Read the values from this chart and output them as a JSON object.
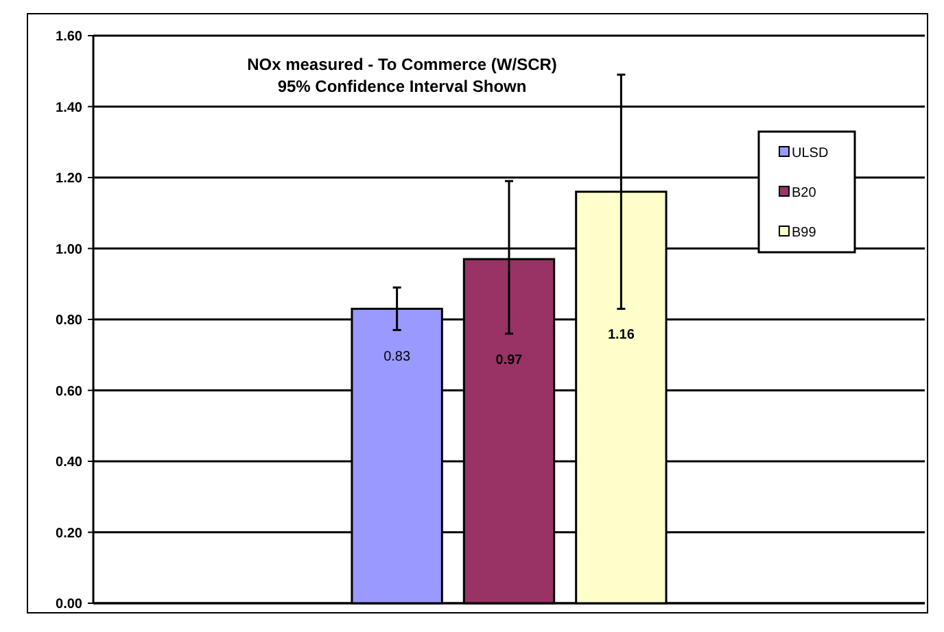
{
  "chart_data": {
    "type": "bar",
    "title": "NOx measured  - To Commerce (W/SCR)",
    "subtitle": "95% Confidence Interval Shown",
    "categories": [
      null
    ],
    "series": [
      {
        "name": "ULSD",
        "color": "#9999ff",
        "values": [
          0.83
        ],
        "errors": [
          [
            0.77,
            0.89
          ]
        ]
      },
      {
        "name": "B20",
        "color": "#993366",
        "values": [
          0.97
        ],
        "errors": [
          [
            0.76,
            1.19
          ]
        ]
      },
      {
        "name": "B99",
        "color": "#ffffcc",
        "values": [
          1.16
        ],
        "errors": [
          [
            0.83,
            1.49
          ]
        ]
      }
    ],
    "ylim": [
      0,
      1.6
    ],
    "yticks": [
      {
        "value": 0,
        "label": "0.00"
      },
      {
        "value": 0.2,
        "label": "0.20"
      },
      {
        "value": 0.4,
        "label": "0.40"
      },
      {
        "value": 0.6,
        "label": "0.60"
      },
      {
        "value": 0.8,
        "label": "0.80"
      },
      {
        "value": 1,
        "label": "1.00"
      },
      {
        "value": 1.2,
        "label": "1.20"
      },
      {
        "value": 1.4,
        "label": "1.40"
      },
      {
        "value": 1.6,
        "label": "1.60"
      }
    ],
    "grid": "y",
    "legend": "right",
    "data_labels": true
  }
}
